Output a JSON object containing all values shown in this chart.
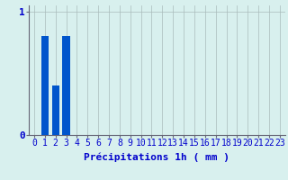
{
  "hours": [
    0,
    1,
    2,
    3,
    4,
    5,
    6,
    7,
    8,
    9,
    10,
    11,
    12,
    13,
    14,
    15,
    16,
    17,
    18,
    19,
    20,
    21,
    22,
    23
  ],
  "values": [
    0,
    0.8,
    0.4,
    0.8,
    0,
    0,
    0,
    0,
    0,
    0,
    0,
    0,
    0,
    0,
    0,
    0,
    0,
    0,
    0,
    0,
    0,
    0,
    0,
    0
  ],
  "bar_color": "#0055cc",
  "background_color": "#d8f0ee",
  "plot_bg_color": "#d8f0ee",
  "xlabel": "Précipitations 1h ( mm )",
  "xlabel_color": "#0000cc",
  "ytick_labels": [
    "0",
    "1"
  ],
  "ytick_values": [
    0,
    1
  ],
  "ylim": [
    0,
    1.05
  ],
  "xlim": [
    -0.5,
    23.5
  ],
  "grid_color": "#aabbbb",
  "axis_color": "#666677",
  "xlabel_fontsize": 8,
  "tick_fontsize": 7
}
